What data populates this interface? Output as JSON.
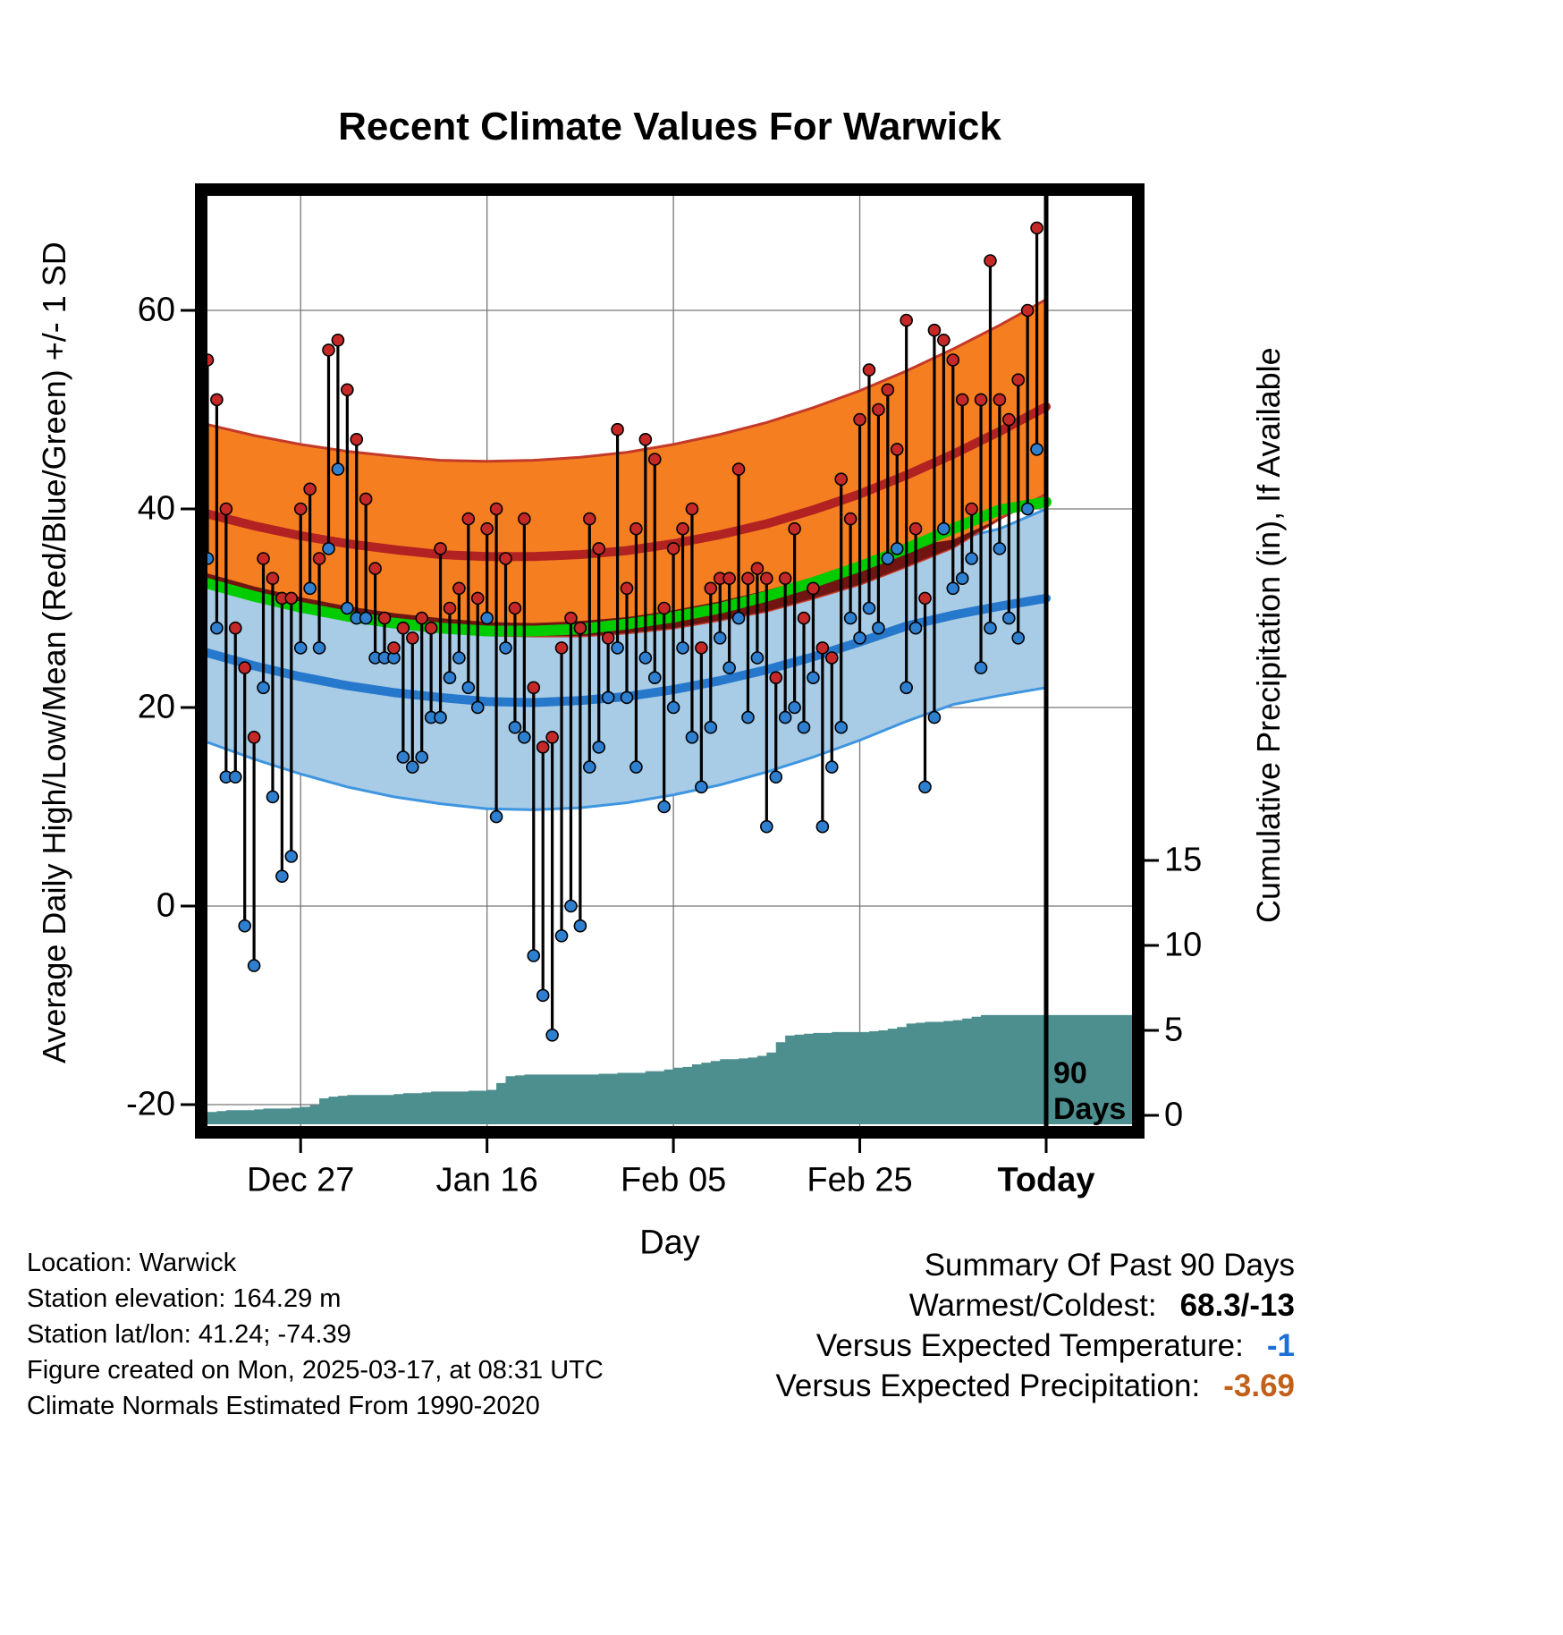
{
  "title": "Recent Climate Values For Warwick",
  "axes": {
    "left_label": "Average Daily High/Low/Mean (Red/Blue/Green) +/- 1 SD",
    "right_label": "Cumulative Precipitation (in), If Available",
    "x_label": "Day",
    "temp_ticks": [
      -20,
      0,
      20,
      40,
      60
    ],
    "precip_ticks": [
      0,
      5,
      10,
      15
    ],
    "x_ticks": [
      {
        "day": 10,
        "label": "Dec 27",
        "bold": false
      },
      {
        "day": 30,
        "label": "Jan 16",
        "bold": false
      },
      {
        "day": 50,
        "label": "Feb 05",
        "bold": false
      },
      {
        "day": 70,
        "label": "Feb 25",
        "bold": false
      },
      {
        "day": 90,
        "label": "Today",
        "bold": true
      }
    ]
  },
  "today_annotation": {
    "line1": "90",
    "line2": "Days",
    "day": 90
  },
  "footer_lines": [
    "Location: Warwick",
    "Station elevation: 164.29 m",
    "Station lat/lon: 41.24; -74.39",
    "Figure created on Mon, 2025-03-17, at 08:31 UTC",
    "Climate Normals Estimated From 1990-2020"
  ],
  "summary": {
    "heading": "Summary Of Past 90 Days",
    "rows": [
      {
        "label": "Warmest/Coldest:",
        "value": "68.3/-13",
        "color": "#000000"
      },
      {
        "label": "Versus Expected Temperature:",
        "value": "-1",
        "color": "#1D6FD6"
      },
      {
        "label": "Versus Expected Precipitation:",
        "value": "-3.69",
        "color": "#C2601A"
      }
    ]
  },
  "colors": {
    "orange_band": "#F57E20",
    "red_mean_line": "#B22222",
    "red_band_edge": "#C43A2A",
    "maroon_overlap": "#701512",
    "green_mean_line": "#00CC00",
    "blue_band": "#A8CBE6",
    "blue_mean_line": "#2678CC",
    "blue_band_edge": "#3E95E0",
    "precip_fill": "#4D8F8F",
    "stem": "#000000",
    "dot_high": "#C62828",
    "dot_low": "#2E7FD0",
    "grid": "#777777",
    "frame": "#000000",
    "today_line": "#000000"
  },
  "chart_data": {
    "type": "line",
    "title": "Recent Climate Values For Warwick",
    "xlabel": "Day",
    "ylabel_left": "Average Daily High/Low/Mean (Red/Blue/Green) +/- 1 SD",
    "ylabel_right": "Cumulative Precipitation (in), If Available",
    "x_range_days": [
      0,
      90
    ],
    "temp_axis_ticks": [
      -20,
      0,
      20,
      40,
      60
    ],
    "precip_axis_ticks": [
      0,
      5,
      10,
      15
    ],
    "daily": {
      "high": [
        55,
        51,
        40,
        28,
        24,
        17,
        35,
        33,
        31,
        31,
        40,
        42,
        35,
        56,
        57,
        52,
        47,
        41,
        34,
        29,
        26,
        28,
        27,
        29,
        28,
        36,
        30,
        32,
        39,
        31,
        38,
        40,
        35,
        30,
        39,
        22,
        16,
        17,
        26,
        29,
        28,
        39,
        36,
        27,
        48,
        32,
        38,
        47,
        45,
        30,
        36,
        38,
        40,
        26,
        32,
        33,
        33,
        44,
        33,
        34,
        33,
        23,
        33,
        38,
        29,
        32,
        26,
        25,
        43,
        39,
        49,
        54,
        50,
        52,
        46,
        59,
        38,
        31,
        58,
        57,
        55,
        51,
        40,
        51,
        65,
        51,
        49,
        53,
        60,
        68.3
      ],
      "low": [
        35,
        28,
        13,
        13,
        -2,
        -6,
        22,
        11,
        3,
        5,
        26,
        32,
        26,
        36,
        44,
        30,
        29,
        29,
        25,
        25,
        25,
        15,
        14,
        15,
        19,
        19,
        23,
        25,
        22,
        20,
        29,
        9,
        26,
        18,
        17,
        -5,
        -9,
        -13,
        -3,
        0,
        -2,
        14,
        16,
        21,
        26,
        21,
        14,
        25,
        23,
        10,
        20,
        26,
        17,
        12,
        18,
        27,
        24,
        29,
        19,
        25,
        8,
        13,
        19,
        20,
        18,
        23,
        8,
        14,
        18,
        29,
        27,
        30,
        28,
        35,
        36,
        22,
        28,
        12,
        19,
        38,
        32,
        33,
        35,
        24,
        28,
        36,
        29,
        27,
        40,
        46
      ]
    },
    "normals": {
      "x": [
        0,
        5,
        10,
        15,
        20,
        25,
        30,
        35,
        40,
        45,
        50,
        55,
        60,
        65,
        70,
        75,
        80,
        85,
        90
      ],
      "high_upper": [
        48.5,
        47.4,
        46.5,
        45.8,
        45.3,
        44.9,
        44.8,
        44.9,
        45.2,
        45.7,
        46.5,
        47.5,
        48.7,
        50.2,
        51.9,
        53.9,
        56.1,
        58.5,
        61.1
      ],
      "high_mean": [
        39.5,
        38.3,
        37.3,
        36.5,
        35.9,
        35.4,
        35.2,
        35.2,
        35.4,
        35.8,
        36.5,
        37.4,
        38.5,
        39.9,
        41.5,
        43.4,
        45.5,
        47.8,
        50.3
      ],
      "high_lower": [
        32.5,
        31.2,
        30.0,
        29.1,
        28.3,
        27.7,
        27.3,
        27.2,
        27.2,
        27.5,
        28.0,
        28.8,
        29.7,
        31.0,
        32.4,
        34.2,
        36.1,
        39.0,
        41.5
      ],
      "mean": [
        32.5,
        31.2,
        30.1,
        29.2,
        28.5,
        28.0,
        27.7,
        27.7,
        27.9,
        28.4,
        29.1,
        30.0,
        31.2,
        32.6,
        34.2,
        36.0,
        38.0,
        39.9,
        40.7
      ],
      "low_upper": [
        33.5,
        32.2,
        31.1,
        30.2,
        29.5,
        29.0,
        28.6,
        28.5,
        28.7,
        29.1,
        29.8,
        30.7,
        31.8,
        33.1,
        34.6,
        36.2,
        36.9,
        38.0,
        40.0
      ],
      "low_mean": [
        25.5,
        24.2,
        23.1,
        22.2,
        21.5,
        21.0,
        20.6,
        20.5,
        20.7,
        21.1,
        21.8,
        22.7,
        23.8,
        25.1,
        26.6,
        28.2,
        29.3,
        30.2,
        31.0
      ],
      "low_lower": [
        16.5,
        14.8,
        13.3,
        12.0,
        11.0,
        10.3,
        9.8,
        9.7,
        9.9,
        10.4,
        11.2,
        12.2,
        13.5,
        15.0,
        16.7,
        18.6,
        20.3,
        21.2,
        22.0
      ]
    },
    "precip_cumulative": [
      0.2,
      0.25,
      0.3,
      0.3,
      0.3,
      0.35,
      0.4,
      0.4,
      0.4,
      0.45,
      0.5,
      0.6,
      1.0,
      1.1,
      1.15,
      1.2,
      1.2,
      1.2,
      1.2,
      1.2,
      1.25,
      1.3,
      1.3,
      1.35,
      1.4,
      1.4,
      1.4,
      1.4,
      1.45,
      1.45,
      1.5,
      1.9,
      2.3,
      2.35,
      2.4,
      2.4,
      2.4,
      2.4,
      2.4,
      2.4,
      2.4,
      2.4,
      2.45,
      2.45,
      2.5,
      2.5,
      2.5,
      2.6,
      2.6,
      2.7,
      2.8,
      2.85,
      3.0,
      3.1,
      3.2,
      3.3,
      3.3,
      3.35,
      3.4,
      3.5,
      3.7,
      4.3,
      4.7,
      4.75,
      4.8,
      4.85,
      4.85,
      4.9,
      4.9,
      4.9,
      4.9,
      4.95,
      5.0,
      5.1,
      5.2,
      5.4,
      5.45,
      5.5,
      5.5,
      5.55,
      5.6,
      5.7,
      5.8,
      5.9,
      5.9,
      5.9,
      5.9,
      5.9,
      5.9,
      5.9
    ]
  }
}
